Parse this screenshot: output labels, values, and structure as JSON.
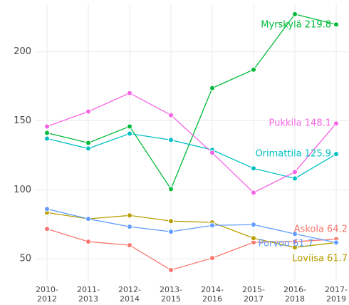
{
  "chart_data": {
    "type": "line",
    "categories": [
      "2010-\n2012",
      "2011-\n2013",
      "2012-\n2014",
      "2013-\n2015",
      "2014-\n2016",
      "2015-\n2017",
      "2016-\n2018",
      "2017-\n2019"
    ],
    "series": [
      {
        "name": "Askola",
        "color": "#F8766D",
        "values": [
          71.6,
          62.4,
          59.8,
          41.8,
          50.5,
          61.9,
          62.4,
          64.2
        ]
      },
      {
        "name": "Loviisa",
        "color": "#B79F00",
        "values": [
          83.5,
          78.9,
          81.4,
          77.3,
          76.3,
          64.9,
          58.2,
          61.7
        ]
      },
      {
        "name": "Myrskylä",
        "color": "#00BA38",
        "values": [
          141.2,
          134.0,
          145.9,
          100.5,
          173.7,
          187.1,
          227.3,
          219.8
        ]
      },
      {
        "name": "Orimattila",
        "color": "#00BFC4",
        "values": [
          137.1,
          129.9,
          140.7,
          136.1,
          128.9,
          115.5,
          108.2,
          125.9
        ]
      },
      {
        "name": "Porvoo",
        "color": "#619CFF",
        "values": [
          86.1,
          78.9,
          73.2,
          69.6,
          74.2,
          74.7,
          68.0,
          61.7
        ]
      },
      {
        "name": "Pukkila",
        "color": "#F564E3",
        "values": [
          145.9,
          156.7,
          170.1,
          154.1,
          126.8,
          97.9,
          112.9,
          148.1
        ]
      }
    ],
    "annotations": [
      "Askola 64.2",
      "Loviisa 61.7",
      "Myrskylä 219.8",
      "Orimattila 125.9",
      "Porvoo 61.7",
      "Pukkila 148.1"
    ],
    "ylim": [
      33.5,
      235
    ],
    "yticks": [
      50,
      100,
      150,
      200
    ],
    "grid": true
  }
}
